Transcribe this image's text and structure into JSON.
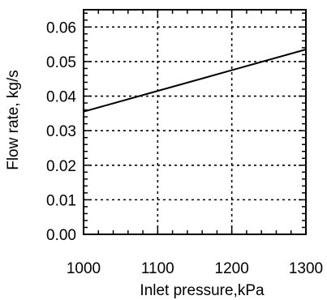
{
  "chart_data": {
    "type": "line",
    "title": "",
    "xlabel": "Inlet pressure,kPa",
    "ylabel": "Flow rate, kg/s",
    "xlim": [
      1000,
      1300
    ],
    "ylim": [
      0,
      0.065
    ],
    "xticks": [
      1000,
      1100,
      1200,
      1300
    ],
    "yticks": [
      0.0,
      0.01,
      0.02,
      0.03,
      0.04,
      0.05,
      0.06
    ],
    "xtick_labels": [
      "1000",
      "1100",
      "1200",
      "1300"
    ],
    "ytick_labels": [
      "0.00",
      "0.01",
      "0.02",
      "0.03",
      "0.04",
      "0.05",
      "0.06"
    ],
    "grid": true,
    "grid_style": "dotted",
    "series": [
      {
        "x": [
          1000,
          1100,
          1200,
          1300
        ],
        "y": [
          0.0355,
          0.0415,
          0.0475,
          0.0535
        ]
      }
    ],
    "colors": {
      "line": "#000000",
      "grid": "#000000",
      "frame": "#000000"
    }
  }
}
